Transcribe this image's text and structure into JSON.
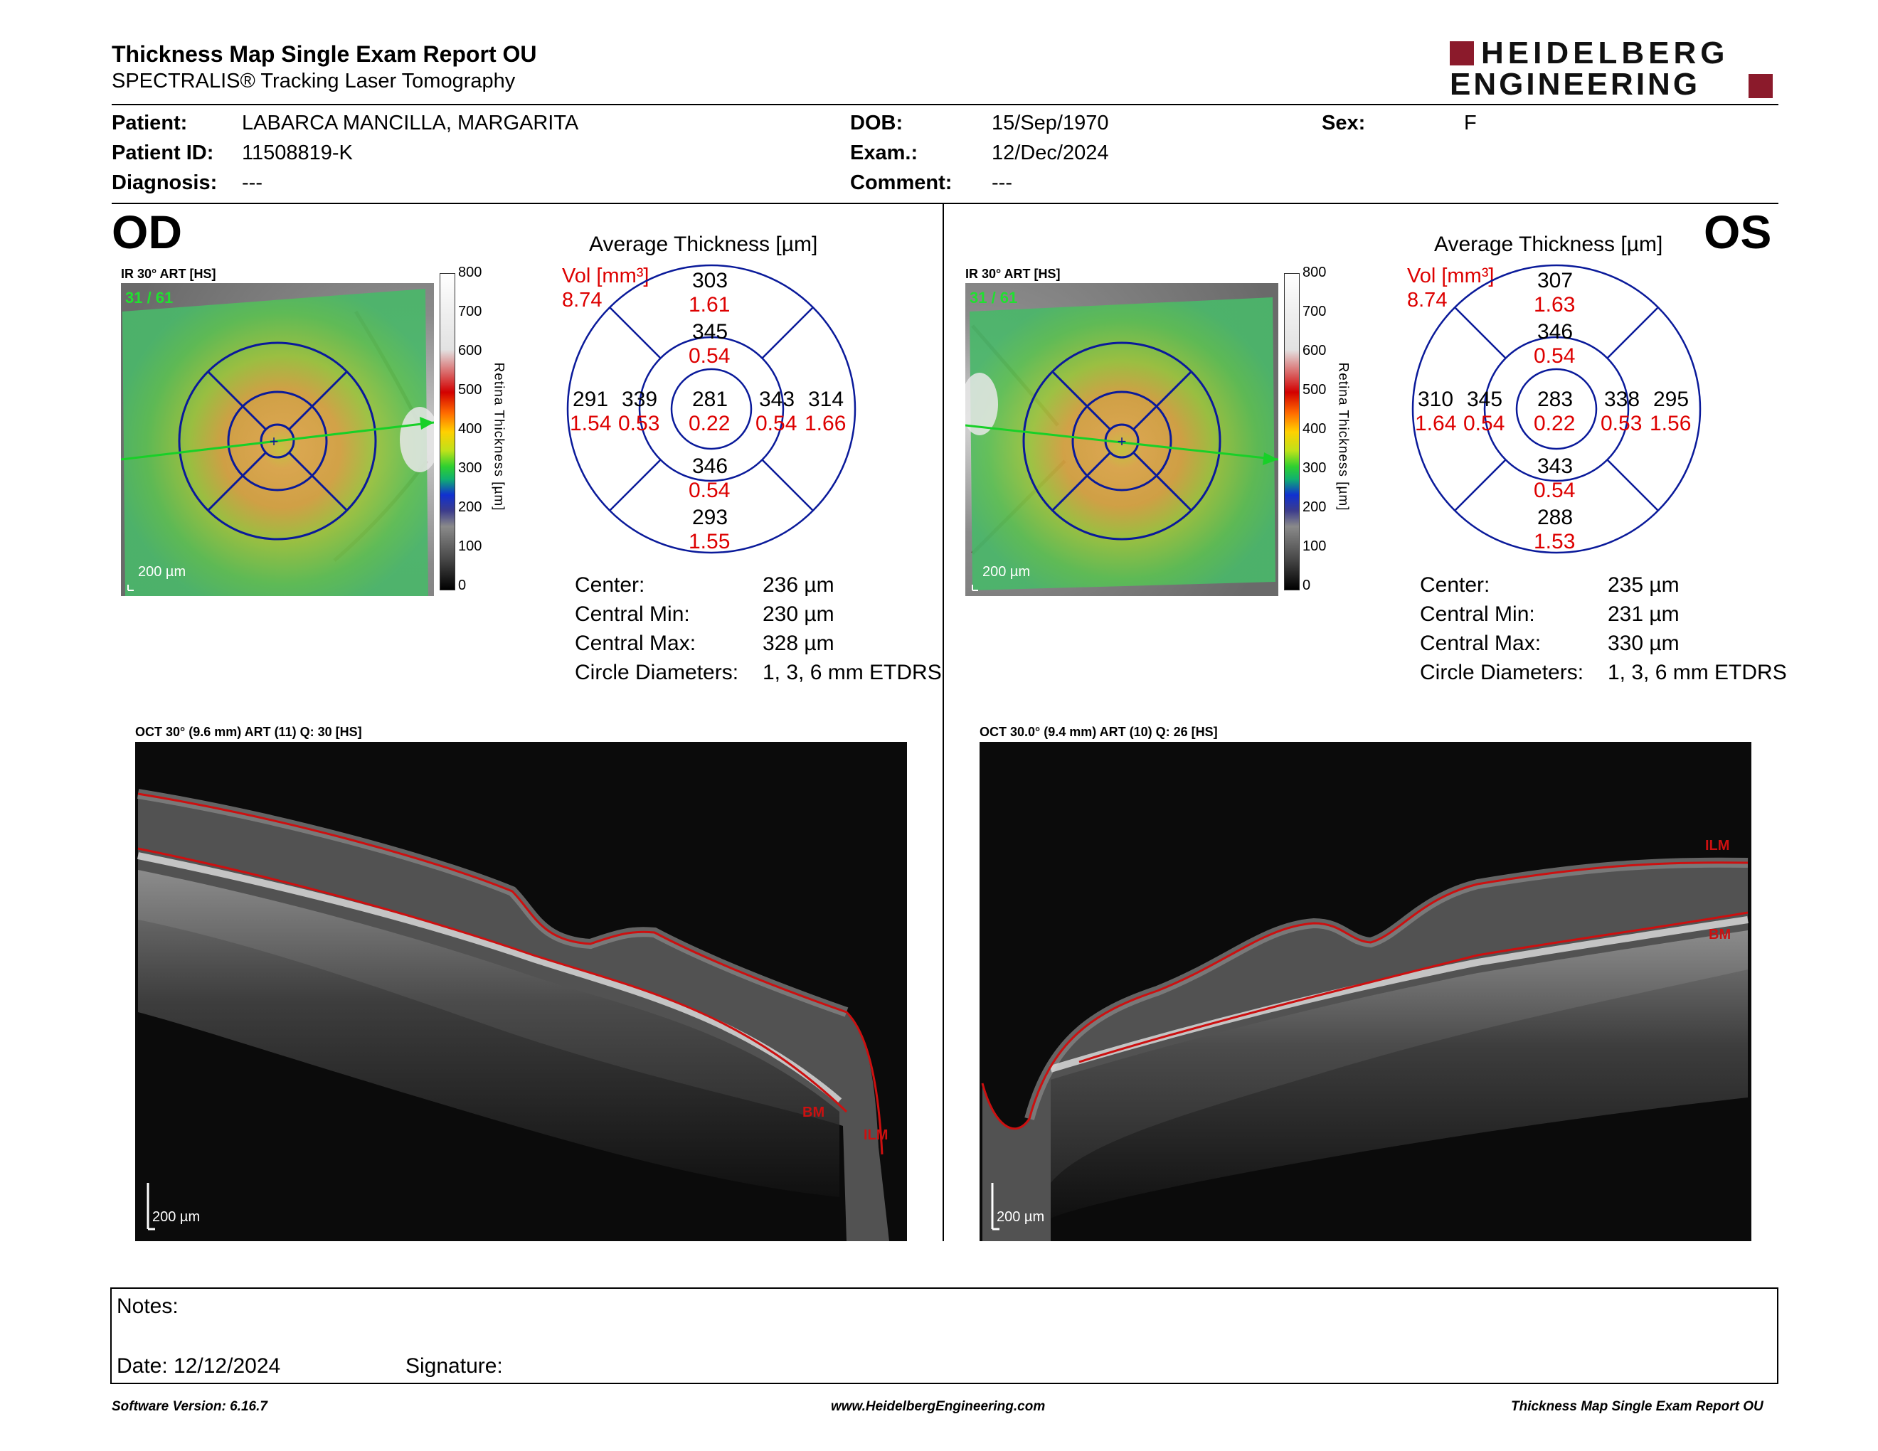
{
  "header": {
    "title": "Thickness Map Single Exam Report OU",
    "subtitle": "SPECTRALIS® Tracking Laser Tomography",
    "logo_line1": "HEIDELBERG",
    "logo_line2": "ENGINEERING"
  },
  "patient": {
    "patient_label": "Patient:",
    "patient_value": "LABARCA MANCILLA, MARGARITA",
    "id_label": "Patient ID:",
    "id_value": "11508819-K",
    "diagnosis_label": "Diagnosis:",
    "diagnosis_value": "---",
    "dob_label": "DOB:",
    "dob_value": "15/Sep/1970",
    "exam_label": "Exam.:",
    "exam_value": "12/Dec/2024",
    "comment_label": "Comment:",
    "comment_value": "---",
    "sex_label": "Sex:",
    "sex_value": "F"
  },
  "colorscale": {
    "ticks": [
      "800",
      "700",
      "600",
      "500",
      "400",
      "300",
      "200",
      "100",
      "0"
    ],
    "axis_label": "Retina Thickness [µm]"
  },
  "od": {
    "eye_label": "OD",
    "ir_label": "IR 30° ART [HS]",
    "ir_counter": "31 / 61",
    "ir_scale": "200 µm",
    "avg_title": "Average Thickness [µm]",
    "vol_label": "Vol [mm³]",
    "vol_value": "8.74",
    "sectors": {
      "outer_sup": {
        "t": "303",
        "v": "1.61"
      },
      "inner_sup": {
        "t": "345",
        "v": "0.54"
      },
      "outer_nas": {
        "t": "291",
        "v": "1.54"
      },
      "inner_nas": {
        "t": "339",
        "v": "0.53"
      },
      "center": {
        "t": "281",
        "v": "0.22"
      },
      "inner_temp": {
        "t": "343",
        "v": "0.54"
      },
      "outer_temp": {
        "t": "314",
        "v": "1.66"
      },
      "inner_inf": {
        "t": "346",
        "v": "0.54"
      },
      "outer_inf": {
        "t": "293",
        "v": "1.55"
      }
    },
    "stats": [
      {
        "label": "Center:",
        "value": "236 µm"
      },
      {
        "label": "Central Min:",
        "value": "230 µm"
      },
      {
        "label": "Central Max:",
        "value": "328 µm"
      },
      {
        "label": "Circle Diameters:",
        "value": "1, 3, 6 mm ETDRS"
      }
    ],
    "oct_label": "OCT 30° (9.6 mm) ART (11) Q: 30 [HS]",
    "oct_scale": "200 µm",
    "bm_label": "BM",
    "ilm_label": "ILM"
  },
  "os": {
    "eye_label": "OS",
    "ir_label": "IR 30° ART [HS]",
    "ir_counter": "31 / 61",
    "ir_scale": "200 µm",
    "avg_title": "Average Thickness [µm]",
    "vol_label": "Vol [mm³]",
    "vol_value": "8.74",
    "sectors": {
      "outer_sup": {
        "t": "307",
        "v": "1.63"
      },
      "inner_sup": {
        "t": "346",
        "v": "0.54"
      },
      "outer_nas": {
        "t": "310",
        "v": "1.64"
      },
      "inner_nas": {
        "t": "345",
        "v": "0.54"
      },
      "center": {
        "t": "283",
        "v": "0.22"
      },
      "inner_temp": {
        "t": "338",
        "v": "0.53"
      },
      "outer_temp": {
        "t": "295",
        "v": "1.56"
      },
      "inner_inf": {
        "t": "343",
        "v": "0.54"
      },
      "outer_inf": {
        "t": "288",
        "v": "1.53"
      }
    },
    "stats": [
      {
        "label": "Center:",
        "value": "235 µm"
      },
      {
        "label": "Central Min:",
        "value": "231 µm"
      },
      {
        "label": "Central Max:",
        "value": "330 µm"
      },
      {
        "label": "Circle Diameters:",
        "value": "1, 3, 6 mm ETDRS"
      }
    ],
    "oct_label": "OCT 30.0° (9.4 mm) ART (10) Q: 26 [HS]",
    "oct_scale": "200 µm",
    "bm_label": "BM",
    "ilm_label": "ILM"
  },
  "notes": {
    "notes_label": "Notes:",
    "date_label": "Date: 12/12/2024",
    "signature_label": "Signature:"
  },
  "footer": {
    "software": "Software Version: 6.16.7",
    "website": "www.HeidelbergEngineering.com",
    "report": "Thickness Map Single Exam Report OU"
  },
  "colors": {
    "value_red": "#dd0000",
    "grid_blue": "#0a1a9a",
    "logo_red": "#8b1a2b"
  }
}
